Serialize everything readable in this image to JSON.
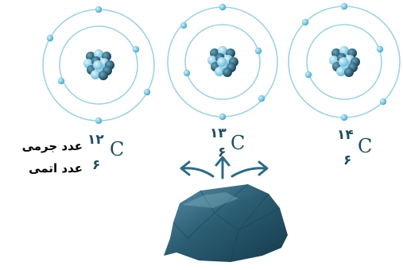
{
  "atoms": [
    {
      "id": "c12",
      "mass": "۱۲",
      "atomic": "۶",
      "symbol": "C"
    },
    {
      "id": "c13",
      "mass": "۱۳",
      "atomic": "۶",
      "symbol": "C"
    },
    {
      "id": "c14",
      "mass": "۱۴",
      "atomic": "۶",
      "symbol": "C"
    }
  ],
  "legend": {
    "mass_label": "عدد جرمی",
    "atomic_label": "عدد اتمی"
  },
  "colors": {
    "orbit": "#9fd3e2",
    "electron": "#4fb3d4",
    "nucleus_light": "#7fc8e0",
    "nucleus_dark": "#1f5a73",
    "text": "#1f4e5f",
    "rock": "#2d5f74",
    "arrow": "#2d6a84"
  }
}
